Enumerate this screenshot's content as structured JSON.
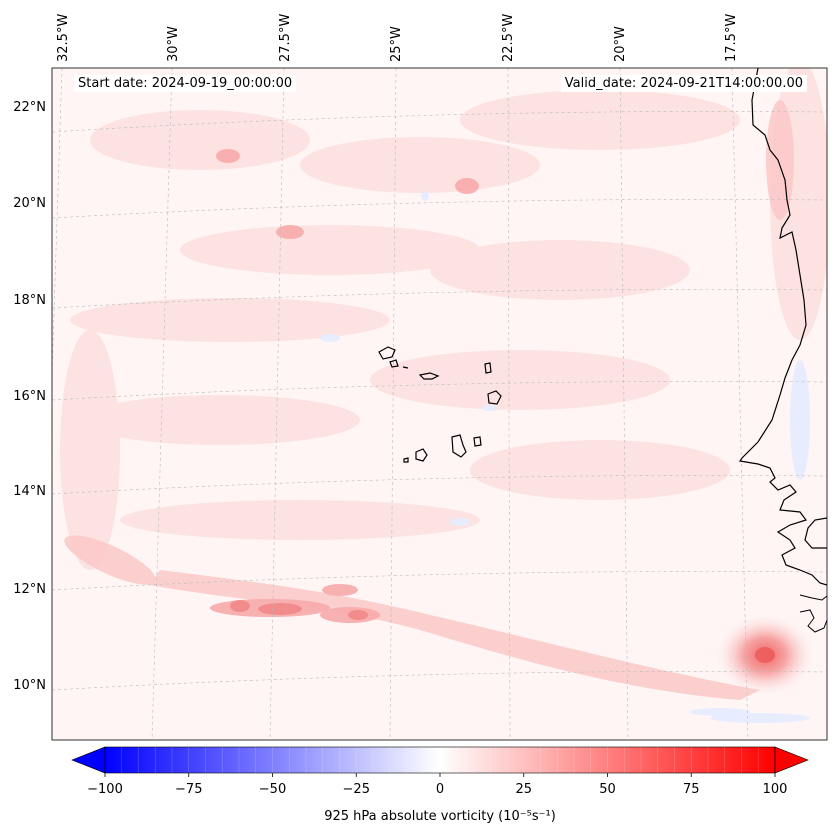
{
  "header": {
    "start_date": "Start date: 2024-09-19_00:00:00",
    "valid_date": "Valid_date: 2024-09-21T14:00:00.00"
  },
  "map": {
    "projection": "regional lat/lon with curved gridlines",
    "lon_labels": [
      "32.5°W",
      "30°W",
      "27.5°W",
      "25°W",
      "22.5°W",
      "20°W",
      "17.5°W"
    ],
    "lat_labels": [
      "22°N",
      "20°N",
      "18°N",
      "16°N",
      "14°N",
      "12°N",
      "10°N"
    ],
    "gridlines": true,
    "coastline_color": "#000000",
    "features": [
      "West African coast",
      "Cape Verde islands",
      "vorticity maximum near 11°N 17.5°W"
    ]
  },
  "colorbar": {
    "cmap": "bwr",
    "min": -100,
    "max": 100,
    "ticks": [
      "−100",
      "−75",
      "−50",
      "−25",
      "0",
      "25",
      "50",
      "75",
      "100"
    ],
    "label": "925 hPa absolute vorticity (10⁻⁵s⁻¹)",
    "extend": "both",
    "color_low": "#0000ff",
    "color_mid": "#ffffff",
    "color_high": "#ff0000"
  }
}
